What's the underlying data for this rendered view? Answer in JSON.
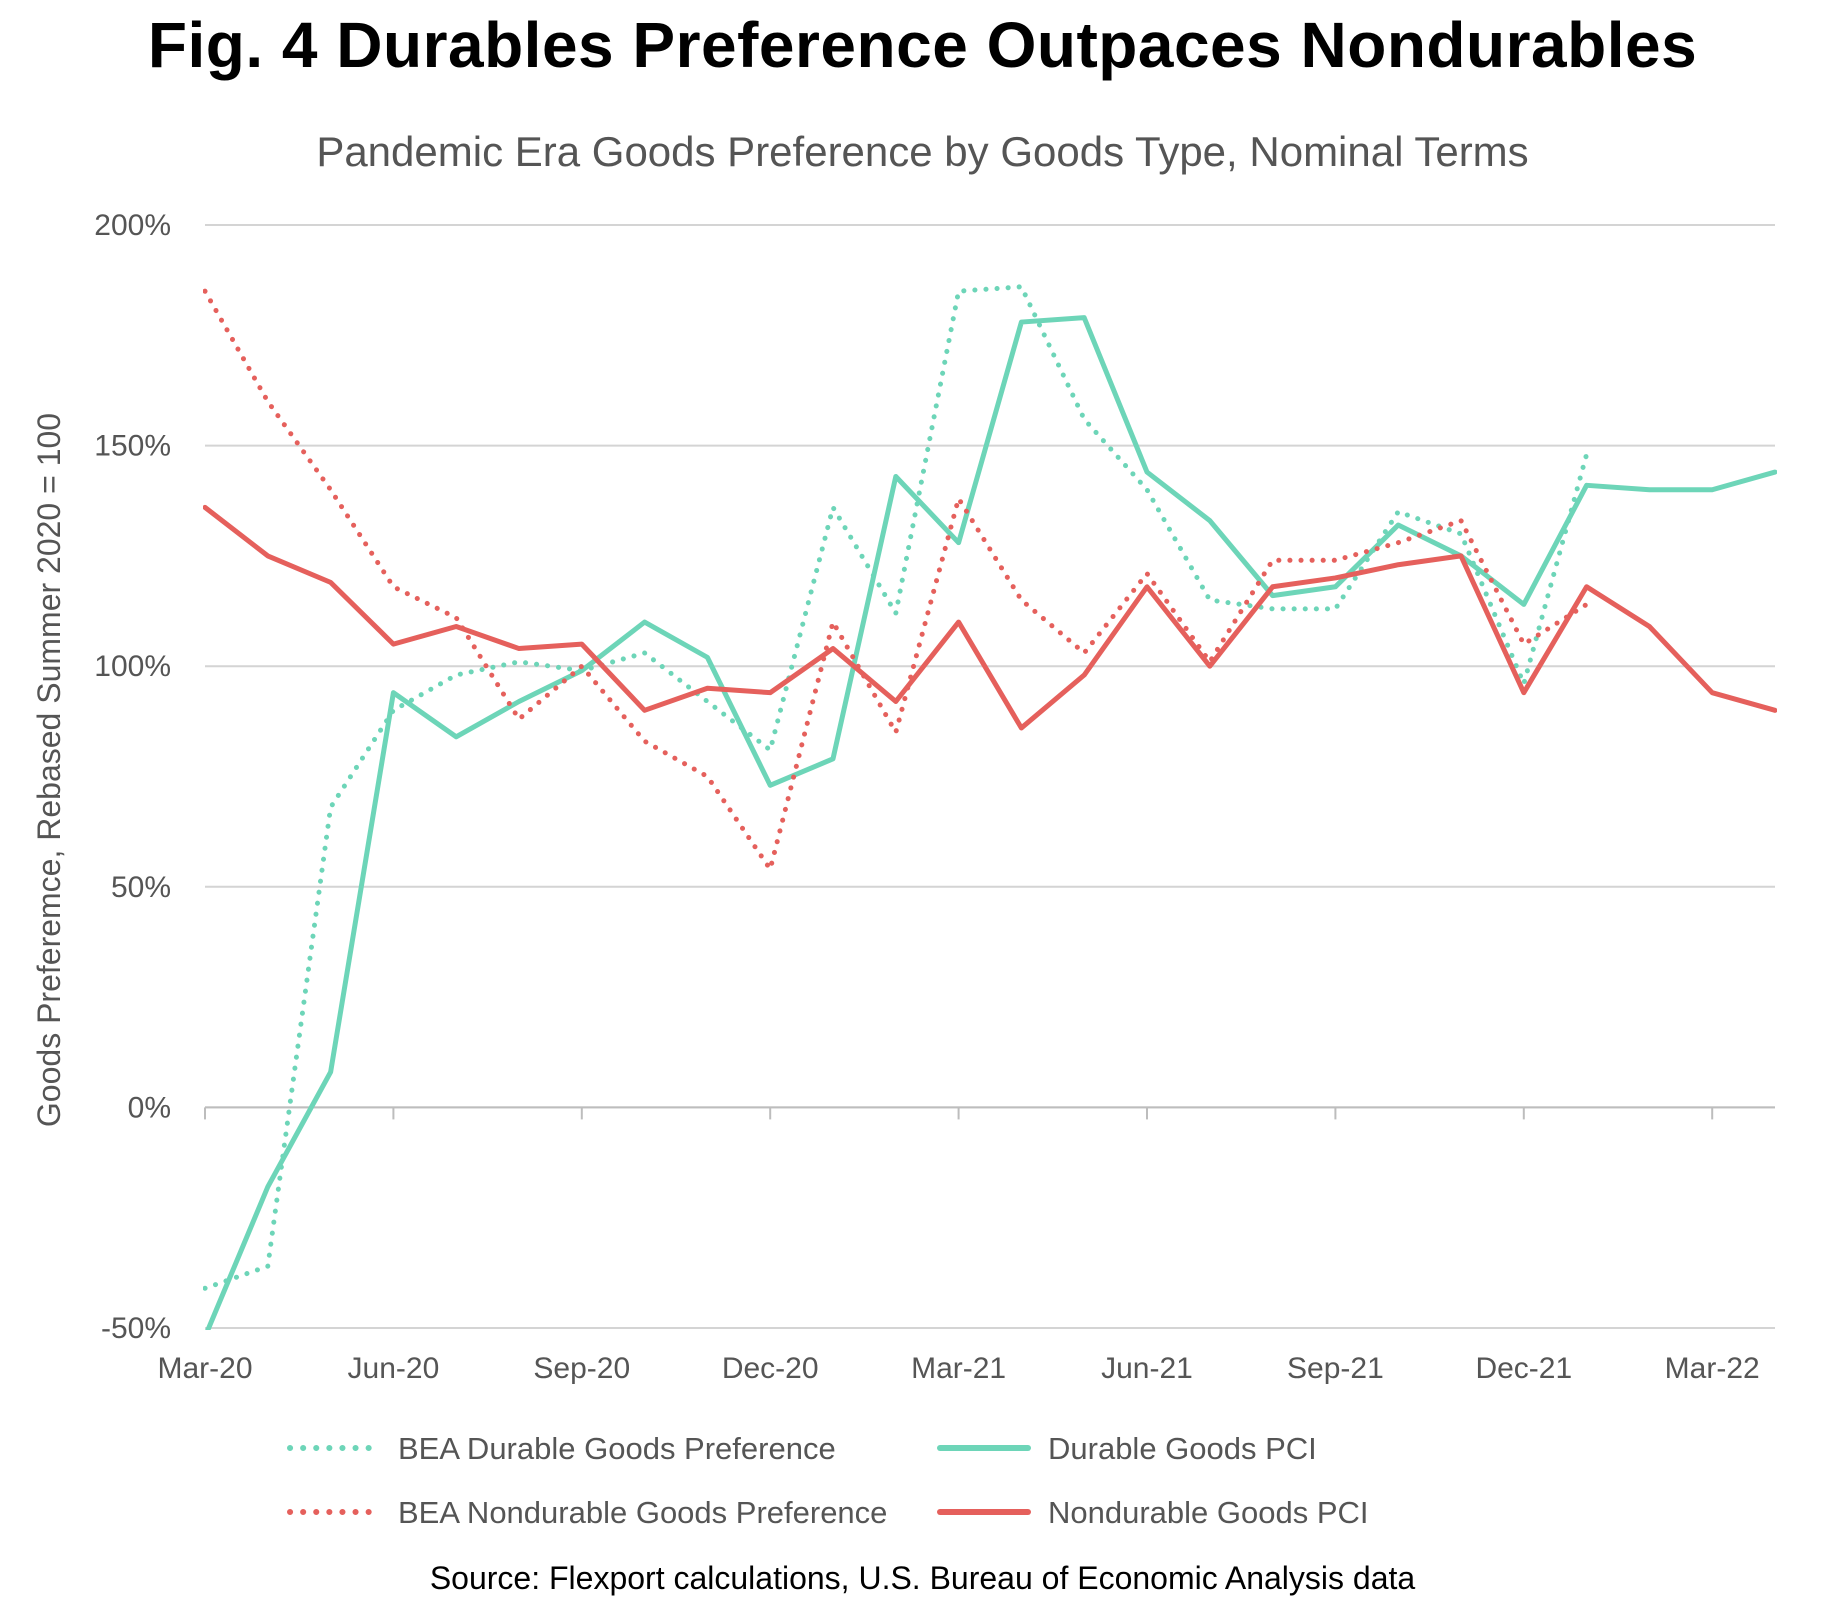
{
  "chart_data": {
    "type": "line",
    "title": "Fig. 4 Durables Preference Outpaces Nondurables",
    "subtitle": "Pandemic Era Goods Preference by Goods Type, Nominal Terms",
    "ylabel": "Goods Preferemce, Rebased Summer 2020 = 100",
    "xlabel": "",
    "source": "Source: Flexport calculations, U.S. Bureau of Economic Analysis data",
    "ylim": [
      -50,
      200
    ],
    "yticks": [
      -50,
      0,
      50,
      100,
      150,
      200
    ],
    "ytick_labels": [
      "-50%",
      "0%",
      "50%",
      "100%",
      "150%",
      "200%"
    ],
    "grid": true,
    "legend_position": "bottom",
    "x": [
      "Mar-20",
      "Apr-20",
      "May-20",
      "Jun-20",
      "Jul-20",
      "Aug-20",
      "Sep-20",
      "Oct-20",
      "Nov-20",
      "Dec-20",
      "Jan-21",
      "Feb-21",
      "Mar-21",
      "Apr-21",
      "May-21",
      "Jun-21",
      "Jul-21",
      "Aug-21",
      "Sep-21",
      "Oct-21",
      "Nov-21",
      "Dec-21",
      "Jan-22",
      "Feb-22",
      "Mar-22",
      "Apr-22"
    ],
    "xtick_labels": [
      {
        "index": 0,
        "label": "Mar-20"
      },
      {
        "index": 3,
        "label": "Jun-20"
      },
      {
        "index": 6,
        "label": "Sep-20"
      },
      {
        "index": 9,
        "label": "Dec-20"
      },
      {
        "index": 12,
        "label": "Mar-21"
      },
      {
        "index": 15,
        "label": "Jun-21"
      },
      {
        "index": 18,
        "label": "Sep-21"
      },
      {
        "index": 21,
        "label": "Dec-21"
      },
      {
        "index": 24,
        "label": "Mar-22"
      }
    ],
    "series": [
      {
        "name": "BEA Durable Goods Preference",
        "color": "#6dd5b8",
        "style": "dotted",
        "values": [
          -41,
          -36,
          68,
          90,
          98,
          101,
          99,
          103,
          92,
          81,
          136,
          112,
          185,
          186,
          156,
          140,
          115,
          113,
          113,
          135,
          130,
          96,
          148,
          null,
          null,
          null
        ]
      },
      {
        "name": "Durable Goods PCI",
        "color": "#6dd5b8",
        "style": "solid",
        "values": [
          -52,
          -18,
          8,
          94,
          84,
          92,
          99,
          110,
          102,
          73,
          79,
          143,
          128,
          178,
          179,
          144,
          133,
          116,
          118,
          132,
          125,
          114,
          141,
          140,
          140,
          144
        ]
      },
      {
        "name": "BEA Nondurable Goods Preference",
        "color": "#e5605c",
        "style": "dotted",
        "values": [
          185,
          160,
          140,
          118,
          111,
          88,
          100,
          83,
          75,
          54,
          110,
          85,
          138,
          115,
          103,
          121,
          101,
          124,
          124,
          128,
          133,
          105,
          114,
          null,
          null,
          null
        ]
      },
      {
        "name": "Nondurable Goods PCI",
        "color": "#e5605c",
        "style": "solid",
        "values": [
          136,
          125,
          119,
          105,
          109,
          104,
          105,
          90,
          95,
          94,
          104,
          92,
          110,
          86,
          98,
          118,
          100,
          118,
          120,
          123,
          125,
          94,
          118,
          109,
          94,
          90
        ]
      }
    ]
  }
}
